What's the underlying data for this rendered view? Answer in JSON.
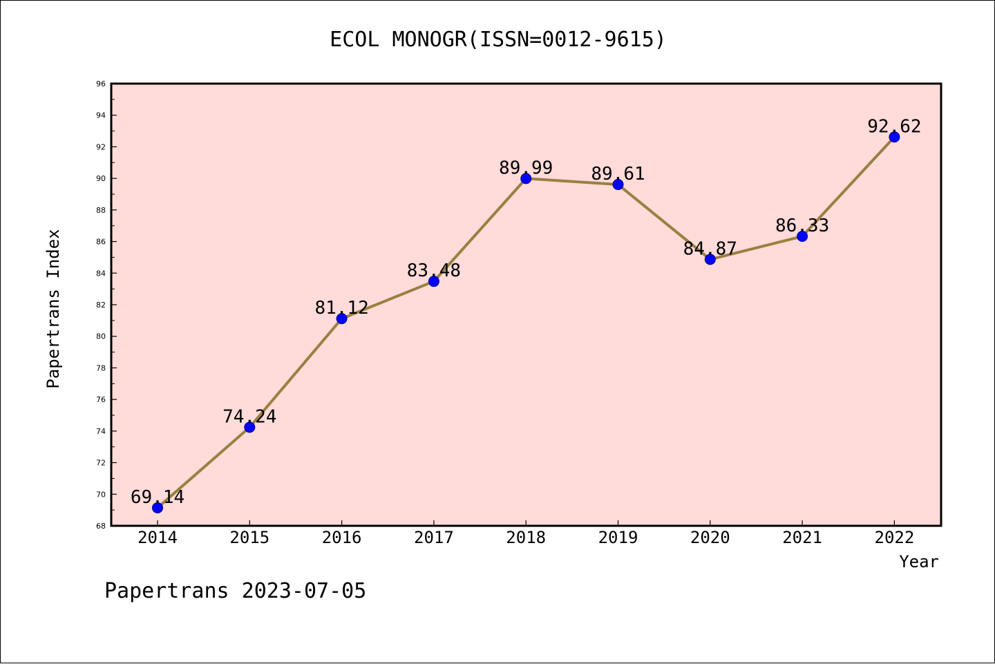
{
  "chart_data": {
    "type": "line",
    "title": "ECOL MONOGR(ISSN=0012-9615)",
    "xlabel": "Year",
    "ylabel": "Papertrans Index",
    "categories": [
      "2014",
      "2015",
      "2016",
      "2017",
      "2018",
      "2019",
      "2020",
      "2021",
      "2022"
    ],
    "series": [
      {
        "values": [
          69.14,
          74.24,
          81.12,
          83.48,
          89.99,
          89.61,
          84.87,
          86.33,
          92.62
        ],
        "labels": [
          "69.14",
          "74.24",
          "81.12",
          "83.48",
          "89.99",
          "89.61",
          "84.87",
          "86.33",
          "92.62"
        ]
      }
    ],
    "ylim": [
      68,
      96
    ],
    "yticks": [
      "68",
      "70",
      "72",
      "74",
      "76",
      "78",
      "80",
      "82",
      "84",
      "86",
      "88",
      "90",
      "92",
      "94",
      "96"
    ],
    "grid": false,
    "colors": {
      "plot_background": "#ffdbd9",
      "line": "#9a8040",
      "marker": "#0000ff"
    },
    "footer": "Papertrans 2023-07-05"
  }
}
